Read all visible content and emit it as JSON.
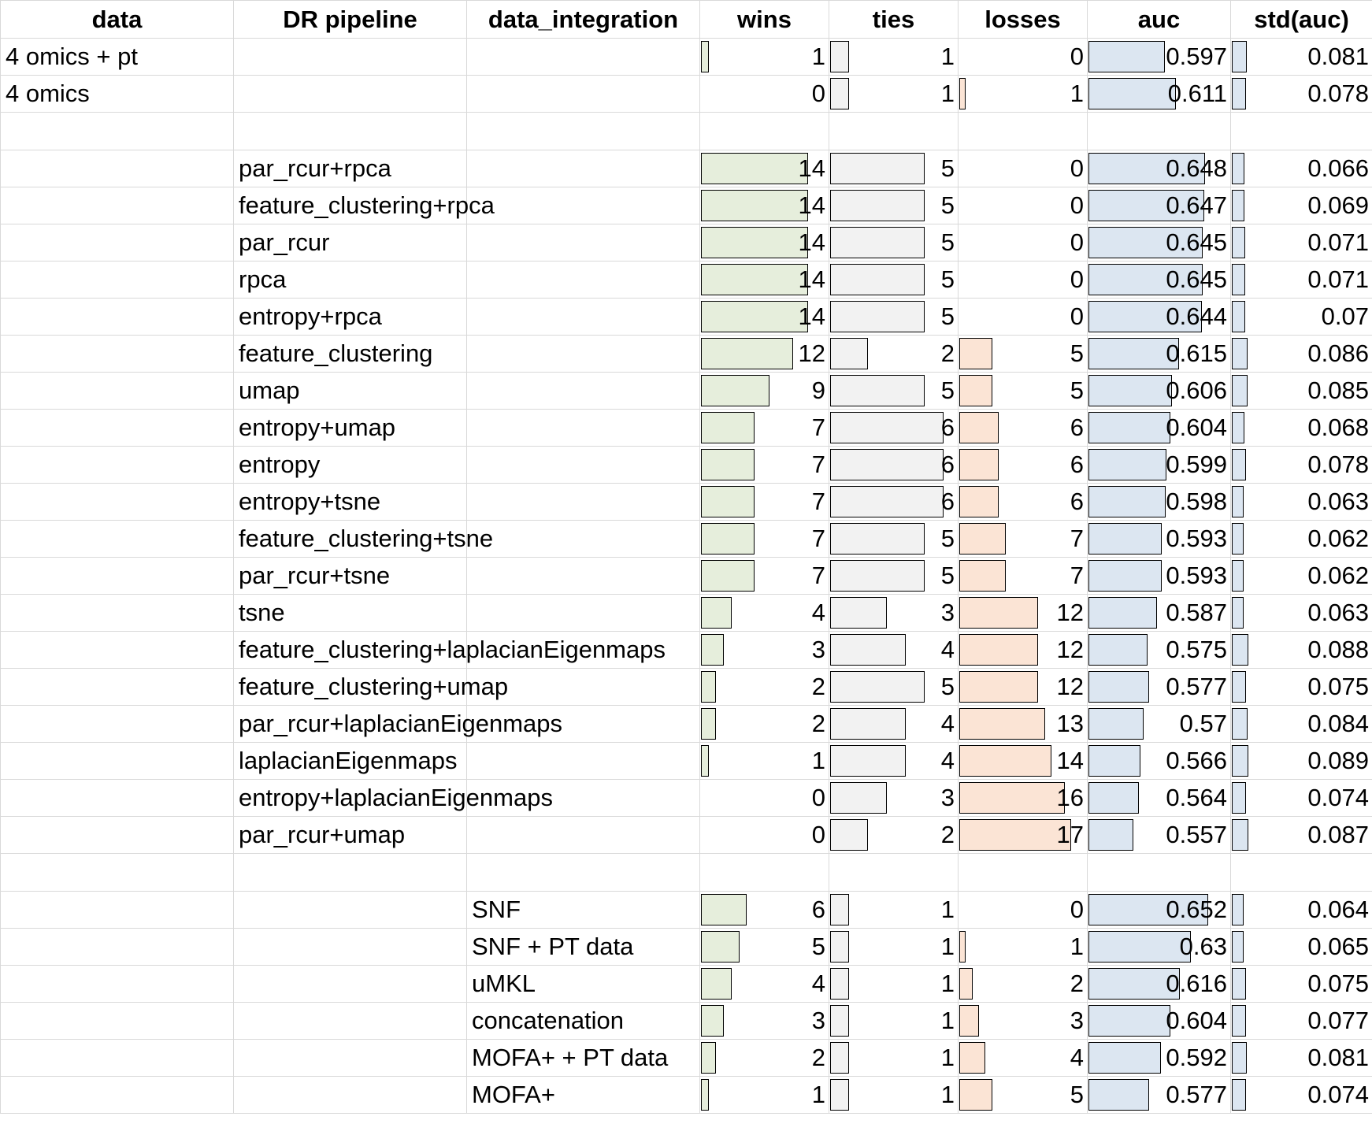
{
  "columns": [
    "data",
    "DR pipeline",
    "data_integration",
    "wins",
    "ties",
    "losses",
    "auc",
    "std(auc)"
  ],
  "groups": [
    {
      "rows": [
        {
          "data": "4 omics + pt",
          "dr": "",
          "integration": "",
          "wins": 1,
          "ties": 1,
          "losses": 0,
          "auc": "0.597",
          "std": "0.081"
        },
        {
          "data": "4 omics",
          "dr": "",
          "integration": "",
          "wins": 0,
          "ties": 1,
          "losses": 1,
          "auc": "0.611",
          "std": "0.078"
        }
      ]
    },
    {
      "rows": [
        {
          "data": "",
          "dr": "par_rcur+rpca",
          "integration": "",
          "wins": 14,
          "ties": 5,
          "losses": 0,
          "auc": "0.648",
          "std": "0.066"
        },
        {
          "data": "",
          "dr": "feature_clustering+rpca",
          "integration": "",
          "wins": 14,
          "ties": 5,
          "losses": 0,
          "auc": "0.647",
          "std": "0.069"
        },
        {
          "data": "",
          "dr": "par_rcur",
          "integration": "",
          "wins": 14,
          "ties": 5,
          "losses": 0,
          "auc": "0.645",
          "std": "0.071"
        },
        {
          "data": "",
          "dr": "rpca",
          "integration": "",
          "wins": 14,
          "ties": 5,
          "losses": 0,
          "auc": "0.645",
          "std": "0.071"
        },
        {
          "data": "",
          "dr": "entropy+rpca",
          "integration": "",
          "wins": 14,
          "ties": 5,
          "losses": 0,
          "auc": "0.644",
          "std": "0.07"
        },
        {
          "data": "",
          "dr": "feature_clustering",
          "integration": "",
          "wins": 12,
          "ties": 2,
          "losses": 5,
          "auc": "0.615",
          "std": "0.086"
        },
        {
          "data": "",
          "dr": "umap",
          "integration": "",
          "wins": 9,
          "ties": 5,
          "losses": 5,
          "auc": "0.606",
          "std": "0.085"
        },
        {
          "data": "",
          "dr": "entropy+umap",
          "integration": "",
          "wins": 7,
          "ties": 6,
          "losses": 6,
          "auc": "0.604",
          "std": "0.068"
        },
        {
          "data": "",
          "dr": "entropy",
          "integration": "",
          "wins": 7,
          "ties": 6,
          "losses": 6,
          "auc": "0.599",
          "std": "0.078"
        },
        {
          "data": "",
          "dr": "entropy+tsne",
          "integration": "",
          "wins": 7,
          "ties": 6,
          "losses": 6,
          "auc": "0.598",
          "std": "0.063"
        },
        {
          "data": "",
          "dr": "feature_clustering+tsne",
          "integration": "",
          "wins": 7,
          "ties": 5,
          "losses": 7,
          "auc": "0.593",
          "std": "0.062"
        },
        {
          "data": "",
          "dr": "par_rcur+tsne",
          "integration": "",
          "wins": 7,
          "ties": 5,
          "losses": 7,
          "auc": "0.593",
          "std": "0.062"
        },
        {
          "data": "",
          "dr": "tsne",
          "integration": "",
          "wins": 4,
          "ties": 3,
          "losses": 12,
          "auc": "0.587",
          "std": "0.063"
        },
        {
          "data": "",
          "dr": "feature_clustering+laplacianEigenmaps",
          "integration": "",
          "wins": 3,
          "ties": 4,
          "losses": 12,
          "auc": "0.575",
          "std": "0.088"
        },
        {
          "data": "",
          "dr": "feature_clustering+umap",
          "integration": "",
          "wins": 2,
          "ties": 5,
          "losses": 12,
          "auc": "0.577",
          "std": "0.075"
        },
        {
          "data": "",
          "dr": "par_rcur+laplacianEigenmaps",
          "integration": "",
          "wins": 2,
          "ties": 4,
          "losses": 13,
          "auc": "0.57",
          "std": "0.084"
        },
        {
          "data": "",
          "dr": "laplacianEigenmaps",
          "integration": "",
          "wins": 1,
          "ties": 4,
          "losses": 14,
          "auc": "0.566",
          "std": "0.089"
        },
        {
          "data": "",
          "dr": "entropy+laplacianEigenmaps",
          "integration": "",
          "wins": 0,
          "ties": 3,
          "losses": 16,
          "auc": "0.564",
          "std": "0.074"
        },
        {
          "data": "",
          "dr": "par_rcur+umap",
          "integration": "",
          "wins": 0,
          "ties": 2,
          "losses": 17,
          "auc": "0.557",
          "std": "0.087"
        }
      ]
    },
    {
      "rows": [
        {
          "data": "",
          "dr": "",
          "integration": "SNF",
          "wins": 6,
          "ties": 1,
          "losses": 0,
          "auc": "0.652",
          "std": "0.064"
        },
        {
          "data": "",
          "dr": "",
          "integration": "SNF + PT data",
          "wins": 5,
          "ties": 1,
          "losses": 1,
          "auc": "0.63",
          "std": "0.065"
        },
        {
          "data": "",
          "dr": "",
          "integration": "uMKL",
          "wins": 4,
          "ties": 1,
          "losses": 2,
          "auc": "0.616",
          "std": "0.075"
        },
        {
          "data": "",
          "dr": "",
          "integration": "concatenation",
          "wins": 3,
          "ties": 1,
          "losses": 3,
          "auc": "0.604",
          "std": "0.077"
        },
        {
          "data": "",
          "dr": "",
          "integration": "MOFA+ + PT data",
          "wins": 2,
          "ties": 1,
          "losses": 4,
          "auc": "0.592",
          "std": "0.081"
        },
        {
          "data": "",
          "dr": "",
          "integration": "MOFA+",
          "wins": 1,
          "ties": 1,
          "losses": 5,
          "auc": "0.577",
          "std": "0.074"
        }
      ]
    }
  ]
}
